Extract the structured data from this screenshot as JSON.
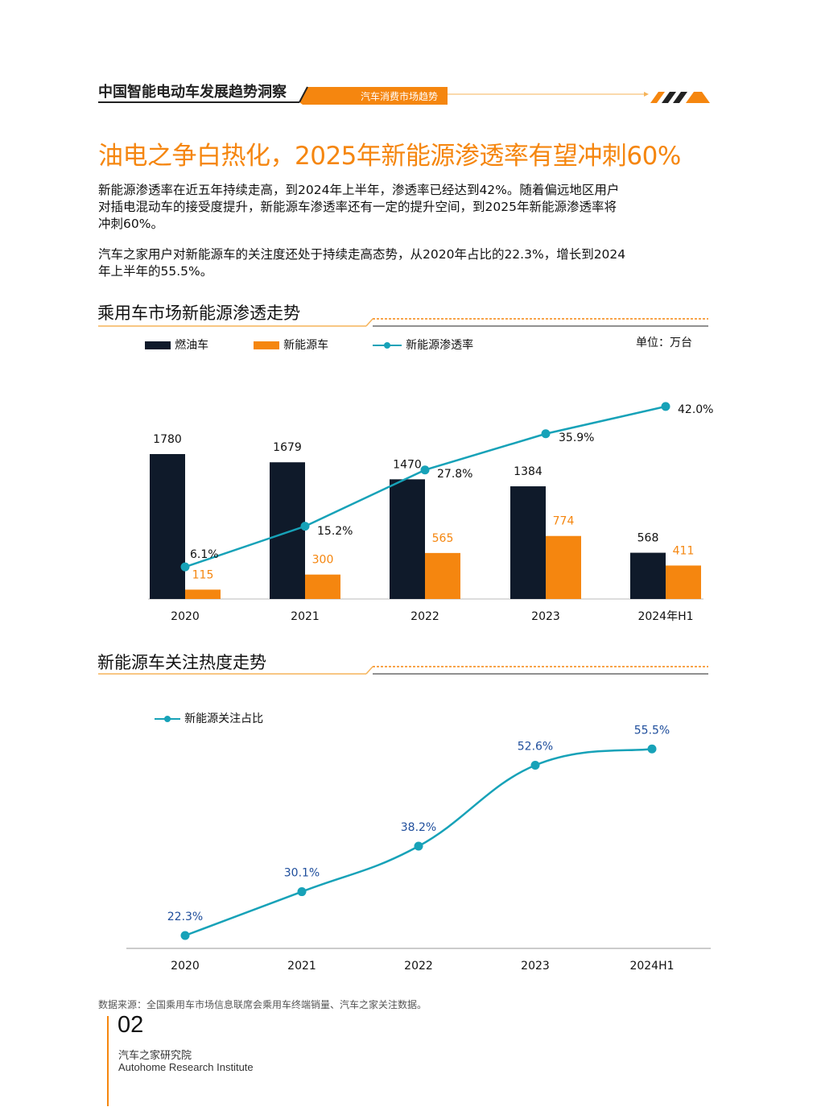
{
  "header": {
    "report_title": "中国智能电动车发展趋势洞察",
    "section_tag": "汽车消费市场趋势"
  },
  "main": {
    "title": "油电之争白热化，2025年新能源渗透率有望冲刺60%",
    "paragraphs": [
      [
        "新能源渗透率在近五年持续走高，到2024年上半年，渗透率已经达到42%。随着偏远地区用户",
        "对插电混动车的接受度提升，新能源车渗透率还有一定的提升空间，到2025年新能源渗透率将",
        "冲刺60%。"
      ],
      [
        "汽车之家用户对新能源车的关注度还处于持续走高态势，从2020年占比的22.3%，增长到2024",
        "年上半年的55.5%。"
      ]
    ]
  },
  "colors": {
    "accent": "#f5860f",
    "fuel_bar": "#0f1a2a",
    "nev_bar": "#f5860f",
    "line": "#17a2b8",
    "attention_label": "#1f4e9c"
  },
  "chart_data": [
    {
      "type": "bar",
      "title": "乘用车市场新能源渗透走势",
      "unit_label": "单位：万台",
      "categories": [
        "2020",
        "2021",
        "2022",
        "2023",
        "2024年H1"
      ],
      "series": [
        {
          "name": "燃油车",
          "values": [
            1780,
            1679,
            1470,
            1384,
            568
          ]
        },
        {
          "name": "新能源车",
          "values": [
            115,
            300,
            565,
            774,
            411
          ]
        },
        {
          "name": "新能源渗透率",
          "type": "line",
          "values": [
            6.1,
            15.2,
            27.8,
            35.9,
            42.0
          ],
          "labels": [
            "6.1%",
            "15.2%",
            "27.8%",
            "35.9%",
            "42.0%"
          ]
        }
      ],
      "legend_position": "top-left",
      "grid": false
    },
    {
      "type": "line",
      "title": "新能源车关注热度走势",
      "categories": [
        "2020",
        "2021",
        "2022",
        "2023",
        "2024H1"
      ],
      "series": [
        {
          "name": "新能源关注占比",
          "values": [
            22.3,
            30.1,
            38.2,
            52.6,
            55.5
          ],
          "labels": [
            "22.3%",
            "30.1%",
            "38.2%",
            "52.6%",
            "55.5%"
          ]
        }
      ],
      "legend_position": "top-left",
      "grid": false
    }
  ],
  "footer": {
    "source": "数据来源：全国乘用车市场信息联席会乘用车终端销量、汽车之家关注数据。",
    "page_number": "02",
    "org_cn": "汽车之家研究院",
    "org_en": "Autohome Research Institute"
  }
}
